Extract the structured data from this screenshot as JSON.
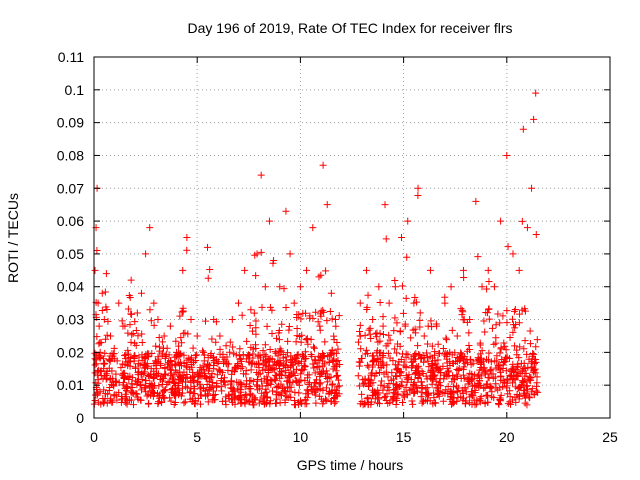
{
  "chart_data": {
    "type": "scatter",
    "title": "Day 196 of 2019, Rate Of TEC Index for receiver flrs",
    "xlabel": "GPS time / hours",
    "ylabel": "ROTI / TECUs",
    "xlim": [
      0,
      25
    ],
    "ylim": [
      0,
      0.11
    ],
    "xticks": [
      0,
      5,
      10,
      15,
      20,
      25
    ],
    "xtick_labels": [
      "0",
      "5",
      "10",
      "15",
      "20",
      "25"
    ],
    "yticks": [
      0,
      0.01,
      0.02,
      0.03,
      0.04,
      0.05,
      0.06,
      0.07,
      0.08,
      0.09,
      0.1,
      0.11
    ],
    "ytick_labels": [
      "0",
      "0.01",
      "0.02",
      "0.03",
      "0.04",
      "0.05",
      "0.06",
      "0.07",
      "0.08",
      "0.09",
      "0.1",
      "0.11"
    ],
    "grid": true,
    "marker": "+",
    "color": "#ff0000",
    "series": [
      {
        "name": "ROTI",
        "x": [
          0.05,
          0.1,
          0.15,
          0.2,
          0.25,
          0.3,
          0.4,
          0.5,
          0.6,
          0.8,
          1.0,
          1.2,
          1.5,
          1.8,
          2.1,
          2.3,
          2.5,
          2.7,
          2.9,
          3.1,
          3.4,
          3.7,
          4.0,
          4.3,
          4.5,
          4.7,
          5.0,
          5.3,
          5.5,
          5.8,
          6.1,
          6.4,
          6.7,
          7.0,
          7.3,
          7.6,
          7.9,
          8.1,
          8.3,
          8.5,
          8.7,
          9.0,
          9.3,
          9.5,
          9.7,
          10.0,
          10.3,
          10.6,
          10.9,
          11.1,
          11.3,
          11.5,
          11.7,
          12.9,
          13.2,
          13.5,
          13.8,
          14.1,
          14.3,
          14.6,
          14.9,
          15.2,
          15.5,
          15.7,
          16.0,
          16.3,
          16.6,
          17.0,
          17.3,
          17.6,
          17.9,
          18.2,
          18.5,
          18.8,
          19.1,
          19.4,
          19.7,
          20.0,
          20.3,
          20.6,
          20.8,
          21.0,
          21.2,
          21.3,
          21.4
        ],
        "y": [
          0.045,
          0.058,
          0.07,
          0.035,
          0.028,
          0.02,
          0.038,
          0.03,
          0.044,
          0.025,
          0.018,
          0.035,
          0.028,
          0.042,
          0.032,
          0.038,
          0.05,
          0.058,
          0.035,
          0.03,
          0.025,
          0.028,
          0.02,
          0.045,
          0.055,
          0.03,
          0.025,
          0.02,
          0.052,
          0.03,
          0.025,
          0.022,
          0.03,
          0.035,
          0.045,
          0.033,
          0.05,
          0.074,
          0.04,
          0.06,
          0.048,
          0.04,
          0.063,
          0.05,
          0.035,
          0.04,
          0.045,
          0.058,
          0.043,
          0.077,
          0.065,
          0.038,
          0.03,
          0.035,
          0.045,
          0.03,
          0.04,
          0.065,
          0.035,
          0.04,
          0.055,
          0.06,
          0.035,
          0.07,
          0.025,
          0.045,
          0.028,
          0.035,
          0.04,
          0.025,
          0.045,
          0.03,
          0.066,
          0.04,
          0.045,
          0.04,
          0.06,
          0.08,
          0.05,
          0.045,
          0.088,
          0.058,
          0.07,
          0.091,
          0.099
        ]
      }
    ]
  }
}
